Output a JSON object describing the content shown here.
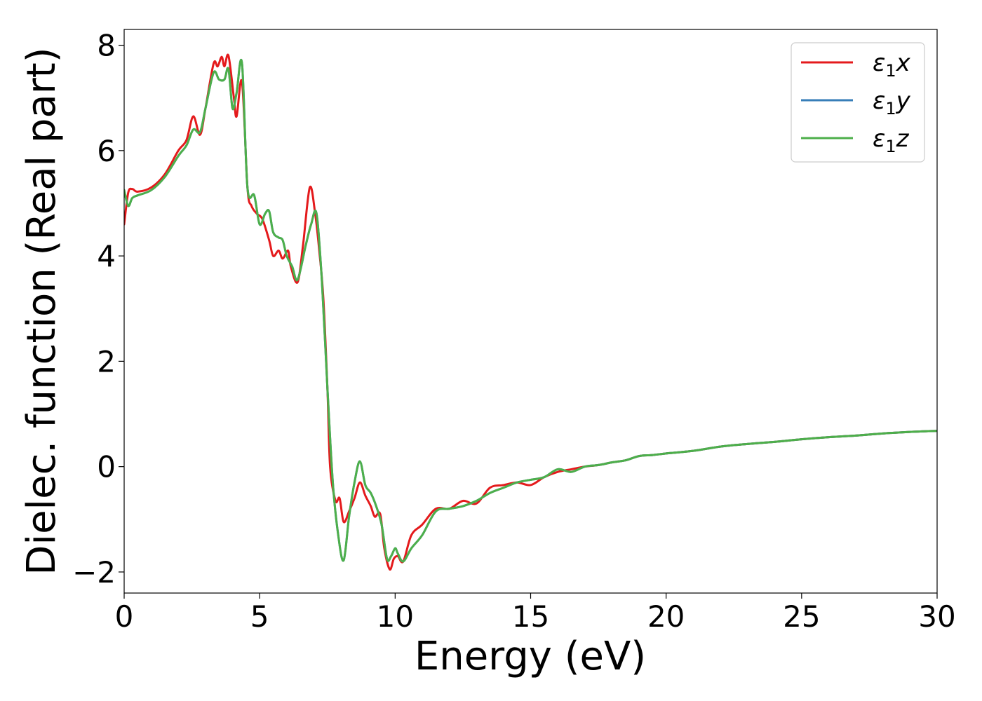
{
  "chart_data": {
    "type": "line",
    "title": "",
    "xlabel": "Energy (eV)",
    "ylabel": "Dielec. function (Real part)",
    "xlim": [
      0,
      30
    ],
    "ylim": [
      -2.4,
      8.3
    ],
    "xticks": [
      0,
      5,
      10,
      15,
      20,
      25,
      30
    ],
    "yticks": [
      -2,
      0,
      2,
      4,
      6,
      8
    ],
    "xtick_labels": [
      "0",
      "5",
      "10",
      "15",
      "20",
      "25",
      "30"
    ],
    "ytick_labels": [
      "−2",
      "0",
      "2",
      "4",
      "6",
      "8"
    ],
    "grid": false,
    "legend_position": "top-right",
    "series": [
      {
        "name": "ε₁x",
        "legend_main": "ε",
        "legend_sub": "1",
        "legend_var": "x",
        "color": "#e41a1c",
        "x": [
          0.0,
          0.15,
          0.3,
          0.5,
          1.0,
          1.5,
          2.0,
          2.3,
          2.55,
          2.8,
          3.0,
          3.3,
          3.45,
          3.6,
          3.7,
          3.85,
          4.05,
          4.15,
          4.35,
          4.55,
          4.7,
          4.9,
          5.1,
          5.35,
          5.5,
          5.7,
          5.85,
          6.05,
          6.15,
          6.4,
          6.6,
          6.85,
          7.05,
          7.2,
          7.35,
          7.5,
          7.6,
          7.8,
          7.95,
          8.1,
          8.3,
          8.5,
          8.7,
          8.9,
          9.1,
          9.25,
          9.45,
          9.6,
          9.8,
          9.95,
          10.1,
          10.3,
          10.6,
          11.0,
          11.5,
          12.0,
          12.5,
          13.0,
          13.5,
          14.0,
          14.5,
          15.0,
          15.5,
          16.0,
          16.5,
          17.0,
          17.5,
          18.0,
          18.5,
          19.0,
          19.5,
          20.0,
          21.0,
          22.0,
          23.0,
          24.0,
          25.0,
          26.0,
          27.0,
          28.0,
          29.0,
          30.0
        ],
        "y": [
          4.6,
          5.2,
          5.27,
          5.22,
          5.3,
          5.55,
          6.0,
          6.2,
          6.65,
          6.3,
          6.8,
          7.65,
          7.6,
          7.78,
          7.6,
          7.8,
          7.0,
          6.65,
          7.3,
          5.3,
          4.95,
          4.8,
          4.7,
          4.3,
          4.0,
          4.1,
          3.95,
          4.1,
          3.8,
          3.5,
          4.2,
          5.3,
          4.8,
          4.1,
          3.2,
          1.5,
          0.0,
          -0.65,
          -0.6,
          -1.05,
          -0.85,
          -0.6,
          -0.3,
          -0.55,
          -0.75,
          -0.95,
          -0.9,
          -1.55,
          -1.95,
          -1.75,
          -1.7,
          -1.8,
          -1.3,
          -1.1,
          -0.8,
          -0.8,
          -0.65,
          -0.7,
          -0.4,
          -0.35,
          -0.3,
          -0.35,
          -0.2,
          -0.1,
          -0.05,
          0.0,
          0.03,
          0.08,
          0.12,
          0.2,
          0.22,
          0.25,
          0.3,
          0.38,
          0.43,
          0.47,
          0.52,
          0.56,
          0.59,
          0.63,
          0.66,
          0.68
        ]
      },
      {
        "name": "ε₁y",
        "legend_main": "ε",
        "legend_sub": "1",
        "legend_var": "y",
        "color": "#377eb8",
        "x": [
          0.0,
          0.15,
          0.3,
          0.5,
          1.0,
          1.5,
          2.0,
          2.3,
          2.55,
          2.8,
          3.0,
          3.3,
          3.5,
          3.7,
          3.85,
          4.0,
          4.15,
          4.35,
          4.55,
          4.8,
          5.0,
          5.2,
          5.35,
          5.5,
          5.7,
          5.85,
          6.0,
          6.2,
          6.4,
          6.7,
          6.9,
          7.1,
          7.3,
          7.5,
          7.7,
          7.9,
          8.1,
          8.3,
          8.5,
          8.7,
          8.9,
          9.1,
          9.3,
          9.5,
          9.7,
          9.85,
          10.0,
          10.1,
          10.3,
          10.6,
          11.0,
          11.5,
          12.0,
          12.5,
          13.0,
          13.5,
          14.0,
          14.5,
          15.0,
          15.5,
          16.0,
          16.5,
          17.0,
          17.5,
          18.0,
          18.5,
          19.0,
          19.5,
          20.0,
          21.0,
          22.0,
          23.0,
          24.0,
          25.0,
          26.0,
          27.0,
          28.0,
          29.0,
          30.0
        ],
        "y": [
          5.25,
          4.95,
          5.1,
          5.15,
          5.25,
          5.5,
          5.9,
          6.1,
          6.4,
          6.35,
          6.8,
          7.48,
          7.35,
          7.35,
          7.55,
          6.8,
          7.1,
          7.65,
          5.3,
          5.15,
          4.6,
          4.8,
          4.85,
          4.45,
          4.35,
          4.3,
          4.0,
          3.8,
          3.55,
          4.2,
          4.6,
          4.8,
          3.5,
          1.5,
          -0.3,
          -1.3,
          -1.78,
          -0.95,
          -0.3,
          0.1,
          -0.35,
          -0.5,
          -0.75,
          -1.1,
          -1.75,
          -1.7,
          -1.55,
          -1.65,
          -1.8,
          -1.55,
          -1.3,
          -0.85,
          -0.8,
          -0.75,
          -0.65,
          -0.5,
          -0.4,
          -0.3,
          -0.25,
          -0.2,
          -0.05,
          -0.1,
          0.0,
          0.03,
          0.08,
          0.12,
          0.2,
          0.22,
          0.25,
          0.3,
          0.38,
          0.43,
          0.47,
          0.52,
          0.56,
          0.59,
          0.63,
          0.66,
          0.68
        ]
      },
      {
        "name": "ε₁z",
        "legend_main": "ε",
        "legend_sub": "1",
        "legend_var": "z",
        "color": "#4daf4a",
        "x": [
          0.0,
          0.15,
          0.3,
          0.5,
          1.0,
          1.5,
          2.0,
          2.3,
          2.55,
          2.8,
          3.0,
          3.3,
          3.5,
          3.7,
          3.85,
          4.0,
          4.15,
          4.35,
          4.55,
          4.8,
          5.0,
          5.2,
          5.35,
          5.5,
          5.7,
          5.85,
          6.0,
          6.2,
          6.4,
          6.7,
          6.9,
          7.1,
          7.3,
          7.5,
          7.7,
          7.9,
          8.1,
          8.3,
          8.5,
          8.7,
          8.9,
          9.1,
          9.3,
          9.5,
          9.7,
          9.85,
          10.0,
          10.1,
          10.3,
          10.6,
          11.0,
          11.5,
          12.0,
          12.5,
          13.0,
          13.5,
          14.0,
          14.5,
          15.0,
          15.5,
          16.0,
          16.5,
          17.0,
          17.5,
          18.0,
          18.5,
          19.0,
          19.5,
          20.0,
          21.0,
          22.0,
          23.0,
          24.0,
          25.0,
          26.0,
          27.0,
          28.0,
          29.0,
          30.0
        ],
        "y": [
          5.25,
          4.95,
          5.1,
          5.15,
          5.25,
          5.5,
          5.9,
          6.1,
          6.4,
          6.35,
          6.8,
          7.48,
          7.35,
          7.35,
          7.55,
          6.8,
          7.1,
          7.65,
          5.3,
          5.15,
          4.6,
          4.8,
          4.85,
          4.45,
          4.35,
          4.3,
          4.0,
          3.8,
          3.55,
          4.2,
          4.6,
          4.8,
          3.5,
          1.5,
          -0.3,
          -1.3,
          -1.78,
          -0.95,
          -0.3,
          0.1,
          -0.35,
          -0.5,
          -0.75,
          -1.1,
          -1.75,
          -1.7,
          -1.55,
          -1.65,
          -1.8,
          -1.55,
          -1.3,
          -0.85,
          -0.8,
          -0.75,
          -0.65,
          -0.5,
          -0.4,
          -0.3,
          -0.25,
          -0.2,
          -0.05,
          -0.1,
          0.0,
          0.03,
          0.08,
          0.12,
          0.2,
          0.22,
          0.25,
          0.3,
          0.38,
          0.43,
          0.47,
          0.52,
          0.56,
          0.59,
          0.63,
          0.66,
          0.68
        ]
      }
    ]
  }
}
